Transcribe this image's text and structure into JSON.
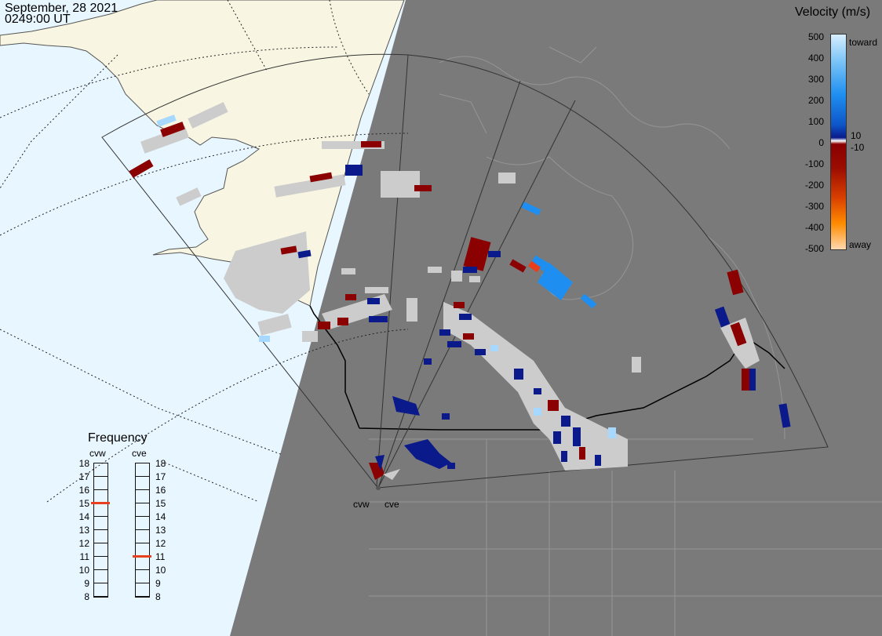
{
  "header": {
    "date": "September, 28 2021",
    "time": "0249:00 UT"
  },
  "colorbar": {
    "title": "Velocity (m/s)",
    "ticks": [
      "500",
      "400",
      "300",
      "200",
      "100",
      "0",
      "-100",
      "-200",
      "-300",
      "-400",
      "-500"
    ],
    "inner_ticks": [
      "10",
      "-10"
    ],
    "end_labels": {
      "top": "toward",
      "bottom": "away"
    }
  },
  "radars": [
    {
      "id": "cvw",
      "label": "cvw"
    },
    {
      "id": "cve",
      "label": "cve"
    }
  ],
  "frequency_panel": {
    "title": "Frequency",
    "columns": [
      "cvw",
      "cve"
    ],
    "scale": [
      "18",
      "17",
      "16",
      "15",
      "14",
      "13",
      "12",
      "11",
      "10",
      "9",
      "8"
    ],
    "cvw_mhz": 15,
    "cve_mhz": 11,
    "marker_color": "#e8401e"
  },
  "colors": {
    "night": "#7a7a7a",
    "land_day": "#f8f6e2",
    "ocean_day": "#e8f6ff",
    "scatter": "#cccccc"
  }
}
